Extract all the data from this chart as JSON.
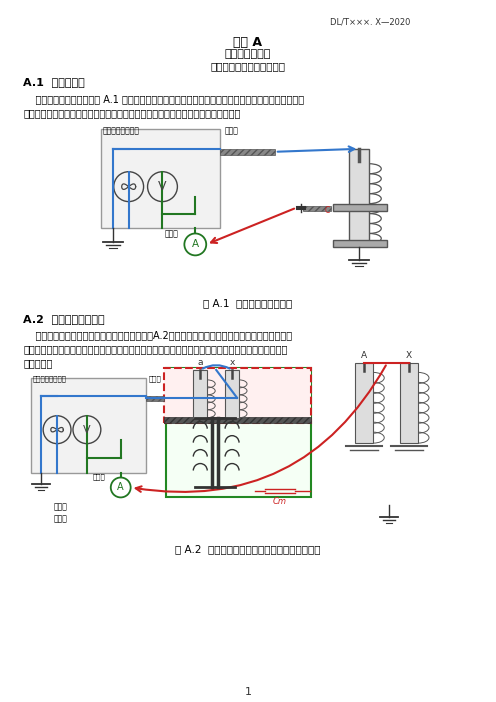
{
  "title1": "附录 A",
  "title2": "（规范性附录）",
  "title3": "频域介电谱法测试接线方法",
  "header_right": "DL/T×××. X—2020",
  "section1_title": "A.1  油浸式套管",
  "section1_body1": "    套管单体的测试接线如图 A.1 所示，频域介电谱测试仪的电压输出端（高压端）连接至套管的导杆，",
  "section1_body2": "电流测量端连接至被测套管末屏，接地线可就近与套管外壳金属部分进行电气连接。",
  "fig1_label": "图 A.1  套管本体测试接线图",
  "fig1_instrument_label": "频域介电谱测试仪",
  "fig1_hv_label": "高压端",
  "fig1_measure_label": "测量端",
  "section2_title": "A.2  油浸式电力变压器",
  "section2_body1": "    单相双绕组油浸式电力变压器的测试接线如图A.2所示，低压套管短接后连接至频域介电谱测试仪",
  "section2_body2": "的电压输出端（高压端），高压套管短接后连接至电流测量端，接地线可就近与变压器的金属外壳进行",
  "section2_body3": "电气连接。",
  "fig2_label": "图 A.2  单相双绕组油浸式电力变压器测试接线图",
  "fig2_instrument_label": "频域介电谱测试仪",
  "fig2_hv_label": "高压端",
  "fig2_bottom_label1": "双绕组",
  "fig2_bottom_label2": "变压器",
  "page_num": "1",
  "bg_color": "#ffffff",
  "text_color": "#000000",
  "blue": "#3377cc",
  "green": "#227722",
  "red": "#cc2222",
  "gray_box": "#f2f2f2",
  "gray_dark": "#555555",
  "gray_med": "#aaaaaa",
  "gray_light": "#dddddd"
}
